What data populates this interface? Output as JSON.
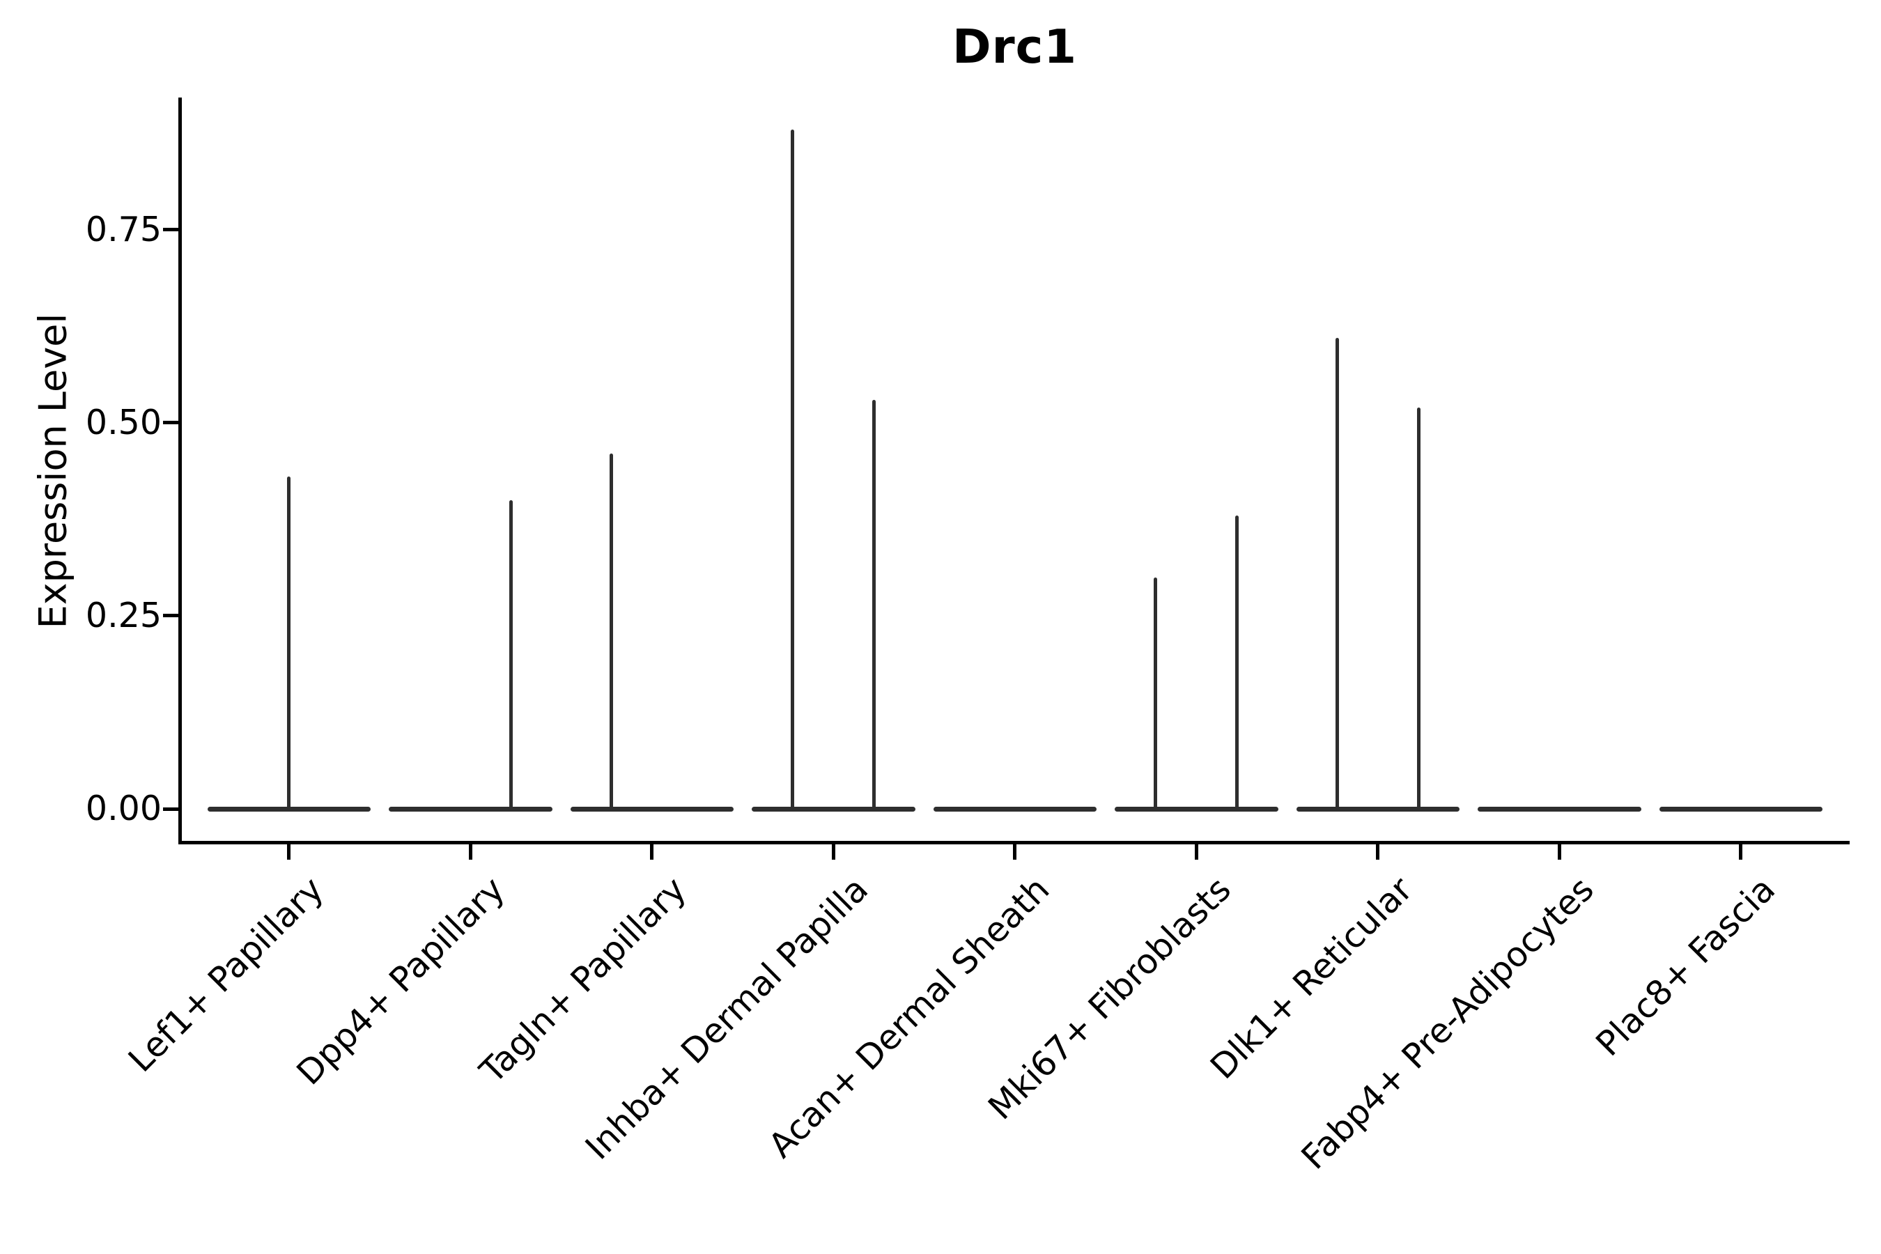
{
  "chart_data": {
    "type": "violin",
    "title": "Drc1",
    "ylabel": "Expression Level",
    "xlabel": "",
    "ylim": [
      -0.04,
      0.92
    ],
    "yticks": [
      {
        "value": 0.0,
        "label": "0.00"
      },
      {
        "value": 0.25,
        "label": "0.25"
      },
      {
        "value": 0.5,
        "label": "0.50"
      },
      {
        "value": 0.75,
        "label": "0.75"
      }
    ],
    "grid": false,
    "legend": false,
    "violin_color": "#2e2e2e",
    "axis_color": "#000000",
    "baseline_value": 0,
    "violin_width_units": 0.9,
    "dodge_offset_units": 0.225,
    "categories": [
      {
        "label": "Lef1+ Papillary",
        "spikes": [
          {
            "offset": 0,
            "max": 0.43
          }
        ]
      },
      {
        "label": "Dpp4+ Papillary",
        "spikes": [
          {
            "offset": 0.225,
            "max": 0.4
          }
        ]
      },
      {
        "label": "Tagln+ Papillary",
        "spikes": [
          {
            "offset": -0.225,
            "max": 0.46
          }
        ]
      },
      {
        "label": "Inhba+ Dermal Papilla",
        "spikes": [
          {
            "offset": -0.225,
            "max": 0.88
          },
          {
            "offset": 0.225,
            "max": 0.53
          }
        ]
      },
      {
        "label": "Acan+ Dermal Sheath",
        "spikes": []
      },
      {
        "label": "Mki67+ Fibroblasts",
        "spikes": [
          {
            "offset": -0.225,
            "max": 0.3
          },
          {
            "offset": 0.225,
            "max": 0.38
          }
        ]
      },
      {
        "label": "Dlk1+ Reticular",
        "spikes": [
          {
            "offset": -0.225,
            "max": 0.61
          },
          {
            "offset": 0.225,
            "max": 0.52
          }
        ]
      },
      {
        "label": "Fabp4+ Pre-Adipocytes",
        "spikes": []
      },
      {
        "label": "Plac8+ Fascia",
        "spikes": []
      }
    ]
  }
}
